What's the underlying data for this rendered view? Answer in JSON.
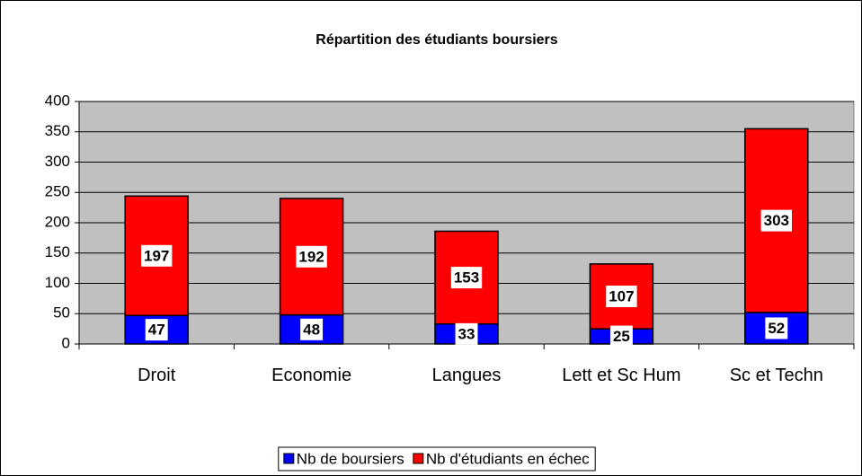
{
  "chart_data": {
    "type": "stacked_bar",
    "title": "Répartition des étudiants boursiers",
    "categories": [
      "Droit",
      "Economie",
      "Langues",
      "Lett et Sc Hum",
      "Sc et Techn"
    ],
    "series": [
      {
        "name": "Nb de boursiers",
        "color": "#0000ff",
        "values": [
          47,
          48,
          33,
          25,
          52
        ]
      },
      {
        "name": "Nb d'étudiants en échec",
        "color": "#ff0000",
        "values": [
          197,
          192,
          153,
          107,
          303
        ]
      }
    ],
    "ylim": [
      0,
      400
    ],
    "yticks": [
      0,
      50,
      100,
      150,
      200,
      250,
      300,
      350,
      400
    ],
    "grid": true,
    "legend": "bottom"
  }
}
